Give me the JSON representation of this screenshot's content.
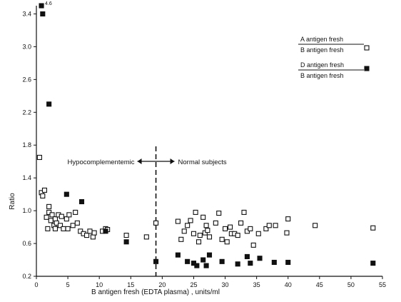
{
  "chart_data": {
    "type": "scatter",
    "xlabel": "B antigen fresh (EDTA plasma) , units/ml",
    "ylabel": "Ratio",
    "xlim": [
      0,
      55
    ],
    "ylim": [
      0.2,
      3.5
    ],
    "xticks": [
      0,
      5,
      10,
      15,
      20,
      25,
      30,
      35,
      40,
      45,
      50,
      55
    ],
    "yticks": [
      0.2,
      0.6,
      1.0,
      1.4,
      1.8,
      2.2,
      2.6,
      3.0,
      3.4
    ],
    "grid": false,
    "legend_position": "top-right",
    "divider_x": 19,
    "annotations": {
      "left_region": "Hypocomplementemic",
      "right_region": "Normal subjects",
      "offscale": "4.6"
    },
    "legend": [
      {
        "marker": "open-square",
        "numerator": "A antigen fresh",
        "denominator": "B antigen fresh"
      },
      {
        "marker": "filled-square",
        "numerator": "D antigen fresh",
        "denominator": "B antigen fresh"
      }
    ],
    "series": [
      {
        "marker": "open-square",
        "points": [
          [
            0.5,
            1.65
          ],
          [
            0.8,
            1.22
          ],
          [
            1.0,
            1.18
          ],
          [
            1.3,
            1.25
          ],
          [
            1.6,
            0.92
          ],
          [
            1.8,
            0.78
          ],
          [
            2.0,
            1.05
          ],
          [
            2.0,
            0.98
          ],
          [
            2.3,
            0.88
          ],
          [
            2.5,
            0.95
          ],
          [
            2.8,
            0.82
          ],
          [
            3.0,
            0.78
          ],
          [
            3.0,
            0.9
          ],
          [
            3.2,
            0.85
          ],
          [
            3.5,
            0.95
          ],
          [
            3.8,
            0.82
          ],
          [
            4.0,
            0.93
          ],
          [
            4.3,
            0.78
          ],
          [
            4.8,
            0.9
          ],
          [
            5.0,
            0.78
          ],
          [
            5.2,
            0.95
          ],
          [
            5.8,
            0.82
          ],
          [
            6.2,
            0.98
          ],
          [
            6.5,
            0.85
          ],
          [
            7.0,
            0.75
          ],
          [
            7.5,
            0.72
          ],
          [
            8.0,
            0.7
          ],
          [
            8.5,
            0.75
          ],
          [
            9.0,
            0.68
          ],
          [
            9.2,
            0.73
          ],
          [
            10.5,
            0.75
          ],
          [
            11.0,
            0.78
          ],
          [
            11.3,
            0.77
          ],
          [
            14.3,
            0.7
          ],
          [
            17.5,
            0.68
          ],
          [
            19.0,
            0.85
          ],
          [
            22.5,
            0.87
          ],
          [
            23.0,
            0.65
          ],
          [
            23.5,
            0.75
          ],
          [
            24.0,
            0.82
          ],
          [
            24.5,
            0.88
          ],
          [
            25.0,
            0.72
          ],
          [
            25.3,
            0.98
          ],
          [
            25.8,
            0.62
          ],
          [
            26.0,
            0.7
          ],
          [
            26.5,
            0.92
          ],
          [
            26.8,
            0.73
          ],
          [
            27.0,
            0.82
          ],
          [
            27.2,
            0.76
          ],
          [
            27.5,
            0.68
          ],
          [
            28.5,
            0.85
          ],
          [
            29.0,
            0.97
          ],
          [
            29.5,
            0.65
          ],
          [
            30.0,
            0.78
          ],
          [
            30.3,
            0.62
          ],
          [
            30.8,
            0.8
          ],
          [
            31.0,
            0.72
          ],
          [
            31.5,
            0.72
          ],
          [
            32.0,
            0.7
          ],
          [
            32.5,
            0.85
          ],
          [
            33.0,
            0.98
          ],
          [
            33.5,
            0.75
          ],
          [
            34.0,
            0.78
          ],
          [
            34.5,
            0.58
          ],
          [
            35.3,
            0.72
          ],
          [
            36.5,
            0.78
          ],
          [
            37.0,
            0.82
          ],
          [
            38.0,
            0.82
          ],
          [
            39.8,
            0.73
          ],
          [
            40.0,
            0.9
          ],
          [
            44.3,
            0.82
          ],
          [
            53.5,
            0.79
          ]
        ]
      },
      {
        "marker": "filled-square",
        "points": [
          [
            0.8,
            3.5
          ],
          [
            1.0,
            3.4
          ],
          [
            2.0,
            2.3
          ],
          [
            4.8,
            1.2
          ],
          [
            7.2,
            1.11
          ],
          [
            11.0,
            0.75
          ],
          [
            14.3,
            0.62
          ],
          [
            19.0,
            0.38
          ],
          [
            22.5,
            0.46
          ],
          [
            24.0,
            0.38
          ],
          [
            25.0,
            0.36
          ],
          [
            25.5,
            0.33
          ],
          [
            26.5,
            0.4
          ],
          [
            27.0,
            0.33
          ],
          [
            27.5,
            0.46
          ],
          [
            29.5,
            0.38
          ],
          [
            32.0,
            0.35
          ],
          [
            33.5,
            0.44
          ],
          [
            34.0,
            0.36
          ],
          [
            35.5,
            0.42
          ],
          [
            37.8,
            0.37
          ],
          [
            40.0,
            0.37
          ],
          [
            53.5,
            0.36
          ]
        ]
      }
    ]
  }
}
